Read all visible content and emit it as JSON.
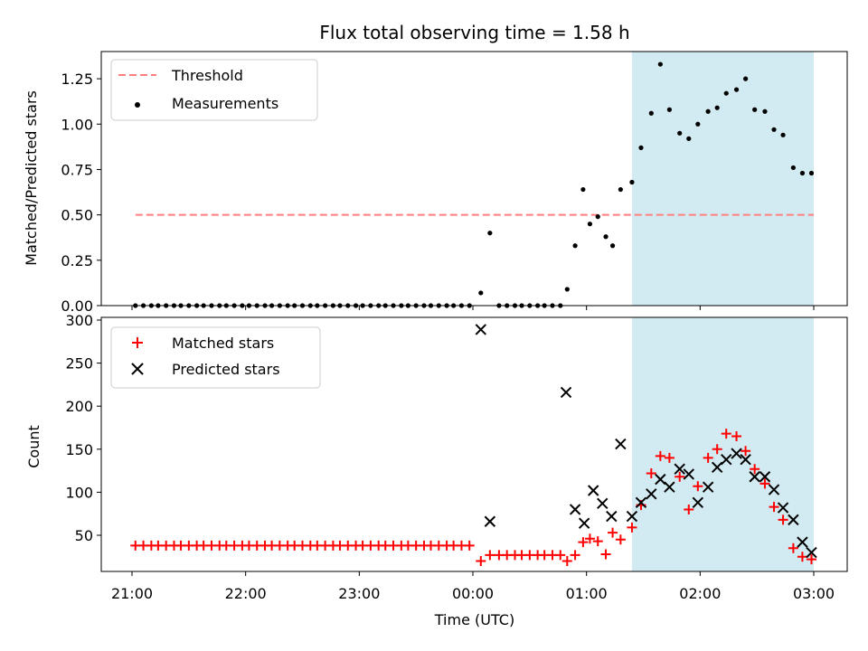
{
  "chart_data": [
    {
      "type": "scatter",
      "title": "Flux total observing time = 1.58 h",
      "xlabel": "",
      "ylabel": "Matched/Predicted stars",
      "ylim": [
        0,
        1.4
      ],
      "yticks": [
        "0.00",
        "0.25",
        "0.50",
        "0.75",
        "1.00",
        "1.25"
      ],
      "x_unit": "hours since 21:00 UTC",
      "xlim": [
        -0.25,
        6.3
      ],
      "legend_position": "top-left",
      "shaded_region": {
        "x": [
          4.4,
          6.0
        ],
        "color": "#add8e6"
      },
      "threshold": {
        "name": "Threshold",
        "value": 0.5,
        "x": [
          0.03,
          6.0
        ],
        "color": "#ff7f7f"
      },
      "series": [
        {
          "name": "Measurements",
          "color": "#000000",
          "x": [
            0.03,
            0.1,
            0.17,
            0.23,
            0.3,
            0.37,
            0.43,
            0.5,
            0.57,
            0.63,
            0.7,
            0.77,
            0.83,
            0.9,
            0.97,
            1.03,
            1.1,
            1.17,
            1.23,
            1.3,
            1.37,
            1.43,
            1.5,
            1.57,
            1.63,
            1.7,
            1.77,
            1.83,
            1.9,
            1.97,
            2.03,
            2.1,
            2.17,
            2.23,
            2.3,
            2.37,
            2.43,
            2.5,
            2.57,
            2.63,
            2.7,
            2.77,
            2.83,
            2.9,
            2.97,
            3.07,
            3.15,
            3.23,
            3.3,
            3.37,
            3.43,
            3.5,
            3.57,
            3.63,
            3.7,
            3.77,
            3.83,
            3.9,
            3.97,
            4.03,
            4.1,
            4.17,
            4.23,
            4.3,
            4.4,
            4.48,
            4.57,
            4.65,
            4.73,
            4.82,
            4.9,
            4.98,
            5.07,
            5.15,
            5.23,
            5.32,
            5.4,
            5.48,
            5.57,
            5.65,
            5.73,
            5.82,
            5.9,
            5.98
          ],
          "values": [
            0,
            0,
            0,
            0,
            0,
            0,
            0,
            0,
            0,
            0,
            0,
            0,
            0,
            0,
            0,
            0,
            0,
            0,
            0,
            0,
            0,
            0,
            0,
            0,
            0,
            0,
            0,
            0,
            0,
            0,
            0,
            0,
            0,
            0,
            0,
            0,
            0,
            0,
            0,
            0,
            0,
            0,
            0,
            0,
            0,
            0.07,
            0.4,
            0,
            0,
            0,
            0,
            0,
            0,
            0,
            0,
            0,
            0.09,
            0.33,
            0.64,
            0.45,
            0.49,
            0.38,
            0.33,
            0.64,
            0.68,
            0.87,
            1.06,
            1.33,
            1.08,
            0.95,
            0.92,
            1.0,
            1.07,
            1.09,
            1.17,
            1.19,
            1.25,
            1.08,
            1.07,
            0.97,
            0.94,
            0.76,
            0.73,
            0.73
          ]
        }
      ]
    },
    {
      "type": "scatter",
      "title": "",
      "xlabel": "Time (UTC)",
      "ylabel": "Count",
      "ylim": [
        5,
        300
      ],
      "yticks": [
        "50",
        "100",
        "150",
        "200",
        "250",
        "300"
      ],
      "xticks": [
        "21:00",
        "22:00",
        "23:00",
        "00:00",
        "01:00",
        "02:00",
        "03:00"
      ],
      "x_unit": "hours since 21:00 UTC",
      "xlim": [
        -0.25,
        6.3
      ],
      "legend_position": "top-left",
      "shaded_region": {
        "x": [
          4.4,
          6.0
        ],
        "color": "#add8e6"
      },
      "series": [
        {
          "name": "Matched stars",
          "color": "#ff0000",
          "marker": "plus",
          "x": [
            0.03,
            0.1,
            0.17,
            0.23,
            0.3,
            0.37,
            0.43,
            0.5,
            0.57,
            0.63,
            0.7,
            0.77,
            0.83,
            0.9,
            0.97,
            1.03,
            1.1,
            1.17,
            1.23,
            1.3,
            1.37,
            1.43,
            1.5,
            1.57,
            1.63,
            1.7,
            1.77,
            1.83,
            1.9,
            1.97,
            2.03,
            2.1,
            2.17,
            2.23,
            2.3,
            2.37,
            2.43,
            2.5,
            2.57,
            2.63,
            2.7,
            2.77,
            2.83,
            2.9,
            2.97,
            3.07,
            3.15,
            3.23,
            3.3,
            3.37,
            3.43,
            3.5,
            3.57,
            3.63,
            3.7,
            3.77,
            3.83,
            3.9,
            3.97,
            4.03,
            4.1,
            4.17,
            4.23,
            4.3,
            4.4,
            4.48,
            4.57,
            4.65,
            4.73,
            4.82,
            4.9,
            4.98,
            5.07,
            5.15,
            5.23,
            5.32,
            5.4,
            5.48,
            5.57,
            5.65,
            5.73,
            5.82,
            5.9,
            5.98
          ],
          "values": [
            38,
            38,
            38,
            38,
            38,
            38,
            38,
            38,
            38,
            38,
            38,
            38,
            38,
            38,
            38,
            38,
            38,
            38,
            38,
            38,
            38,
            38,
            38,
            38,
            38,
            38,
            38,
            38,
            38,
            38,
            38,
            38,
            38,
            38,
            38,
            38,
            38,
            38,
            38,
            38,
            38,
            38,
            38,
            38,
            38,
            20,
            27,
            27,
            27,
            27,
            27,
            27,
            27,
            27,
            27,
            27,
            20,
            27,
            42,
            46,
            43,
            28,
            53,
            45,
            59,
            85,
            122,
            142,
            140,
            118,
            80,
            107,
            140,
            150,
            168,
            165,
            148,
            127,
            110,
            83,
            68,
            35,
            25,
            22
          ]
        },
        {
          "name": "Predicted stars",
          "color": "#000000",
          "marker": "x",
          "x": [
            3.07,
            3.15,
            3.82,
            3.9,
            3.98,
            4.06,
            4.14,
            4.22,
            4.3,
            4.4,
            4.48,
            4.57,
            4.65,
            4.73,
            4.82,
            4.9,
            4.98,
            5.07,
            5.15,
            5.23,
            5.32,
            5.4,
            5.48,
            5.57,
            5.65,
            5.73,
            5.82,
            5.9,
            5.98
          ],
          "values": [
            289,
            66,
            216,
            80,
            64,
            102,
            87,
            72,
            156,
            72,
            88,
            98,
            115,
            106,
            127,
            121,
            88,
            106,
            129,
            138,
            145,
            138,
            118,
            118,
            103,
            82,
            68,
            42,
            30
          ]
        }
      ]
    }
  ]
}
